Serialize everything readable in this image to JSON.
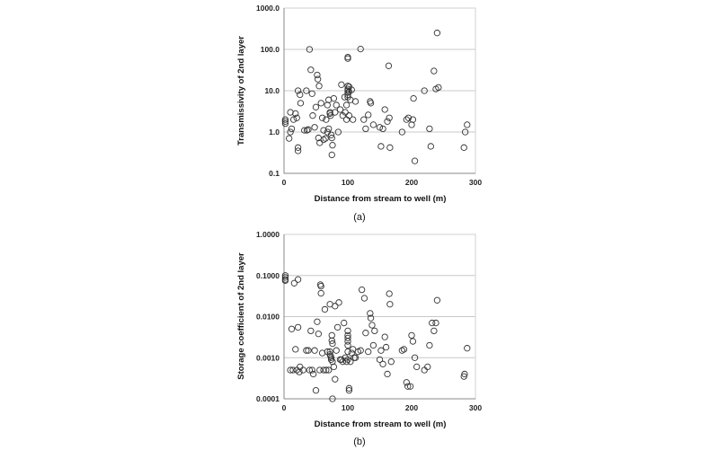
{
  "chart_data": [
    {
      "type": "scatter",
      "panel": "(a)",
      "xlabel": "Distance from stream to well (m)",
      "ylabel": "Transmissivity  of 2nd layer",
      "xlim": [
        0,
        300
      ],
      "ylim": [
        0.1,
        1000
      ],
      "y_scale": "log",
      "x_ticks": [
        "0",
        "100",
        "200",
        "300"
      ],
      "y_ticks": [
        "0.1",
        "1.0",
        "10.0",
        "100.0",
        "1000.0"
      ],
      "grid": "horizontal",
      "marker": "open-circle",
      "points": [
        [
          2,
          1.6
        ],
        [
          2,
          1.8
        ],
        [
          2,
          2.0
        ],
        [
          8,
          0.7
        ],
        [
          10,
          1.0
        ],
        [
          10,
          3.0
        ],
        [
          12,
          1.2
        ],
        [
          15,
          2.0
        ],
        [
          18,
          2.8
        ],
        [
          20,
          2.2
        ],
        [
          22,
          0.35
        ],
        [
          22,
          0.42
        ],
        [
          22,
          10.0
        ],
        [
          25,
          8.0
        ],
        [
          26,
          5.0
        ],
        [
          32,
          1.1
        ],
        [
          35,
          10.0
        ],
        [
          36,
          1.1
        ],
        [
          38,
          1.15
        ],
        [
          40,
          100.0
        ],
        [
          42,
          32.0
        ],
        [
          44,
          8.5
        ],
        [
          45,
          2.5
        ],
        [
          48,
          1.3
        ],
        [
          50,
          4.0
        ],
        [
          52,
          24.0
        ],
        [
          53,
          19.0
        ],
        [
          54,
          0.72
        ],
        [
          55,
          13.0
        ],
        [
          56,
          0.55
        ],
        [
          58,
          5.0
        ],
        [
          60,
          2.2
        ],
        [
          62,
          1.1
        ],
        [
          62,
          0.65
        ],
        [
          65,
          0.7
        ],
        [
          66,
          2.0
        ],
        [
          68,
          4.5
        ],
        [
          68,
          1.0
        ],
        [
          70,
          1.2
        ],
        [
          70,
          6.0
        ],
        [
          72,
          3.0
        ],
        [
          72,
          2.8
        ],
        [
          73,
          2.5
        ],
        [
          74,
          0.85
        ],
        [
          75,
          0.72
        ],
        [
          75,
          0.28
        ],
        [
          76,
          0.48
        ],
        [
          78,
          6.5
        ],
        [
          80,
          3.0
        ],
        [
          82,
          4.5
        ],
        [
          85,
          1.0
        ],
        [
          88,
          3.5
        ],
        [
          90,
          14.0
        ],
        [
          92,
          2.5
        ],
        [
          95,
          7.0
        ],
        [
          96,
          3.0
        ],
        [
          98,
          2.0
        ],
        [
          98,
          4.5
        ],
        [
          100,
          65.0
        ],
        [
          100,
          60.0
        ],
        [
          100,
          13.0
        ],
        [
          100,
          11.0
        ],
        [
          100,
          10.0
        ],
        [
          100,
          9.0
        ],
        [
          100,
          8.0
        ],
        [
          100,
          7.0
        ],
        [
          102,
          12.5
        ],
        [
          102,
          9.5
        ],
        [
          102,
          2.5
        ],
        [
          104,
          6.0
        ],
        [
          106,
          10.5
        ],
        [
          108,
          2.0
        ],
        [
          112,
          5.5
        ],
        [
          120,
          102.0
        ],
        [
          125,
          2.0
        ],
        [
          128,
          1.2
        ],
        [
          132,
          2.6
        ],
        [
          135,
          5.5
        ],
        [
          136,
          5.0
        ],
        [
          140,
          1.5
        ],
        [
          150,
          1.3
        ],
        [
          152,
          0.45
        ],
        [
          155,
          1.2
        ],
        [
          158,
          3.5
        ],
        [
          162,
          1.8
        ],
        [
          164,
          40.0
        ],
        [
          165,
          2.2
        ],
        [
          166,
          0.42
        ],
        [
          185,
          1.0
        ],
        [
          192,
          2.0
        ],
        [
          195,
          2.2
        ],
        [
          200,
          1.5
        ],
        [
          202,
          2.0
        ],
        [
          203,
          6.5
        ],
        [
          205,
          0.2
        ],
        [
          220,
          10.0
        ],
        [
          228,
          1.2
        ],
        [
          230,
          0.45
        ],
        [
          235,
          30.0
        ],
        [
          238,
          11.0
        ],
        [
          240,
          250.0
        ],
        [
          242,
          12.0
        ],
        [
          282,
          0.42
        ],
        [
          284,
          1.0
        ],
        [
          287,
          1.5
        ]
      ]
    },
    {
      "type": "scatter",
      "panel": "(b)",
      "xlabel": "Distance from stream to well (m)",
      "ylabel": "Storage coefficient of 2nd layer",
      "xlim": [
        0,
        300
      ],
      "ylim": [
        0.0001,
        1
      ],
      "y_scale": "log",
      "x_ticks": [
        "0",
        "100",
        "200",
        "300"
      ],
      "y_ticks": [
        "0.0001",
        "0.0010",
        "0.0100",
        "0.1000",
        "1.0000"
      ],
      "grid": "horizontal",
      "marker": "open-circle",
      "points": [
        [
          2,
          0.1
        ],
        [
          2,
          0.09
        ],
        [
          2,
          0.08
        ],
        [
          2,
          0.075
        ],
        [
          10,
          0.0005
        ],
        [
          12,
          0.005
        ],
        [
          14,
          0.0005
        ],
        [
          16,
          0.065
        ],
        [
          18,
          0.0016
        ],
        [
          20,
          0.0005
        ],
        [
          22,
          0.08
        ],
        [
          22,
          0.0055
        ],
        [
          24,
          0.00045
        ],
        [
          25,
          0.0006
        ],
        [
          30,
          0.0005
        ],
        [
          35,
          0.0015
        ],
        [
          38,
          0.0015
        ],
        [
          40,
          0.0005
        ],
        [
          42,
          0.0045
        ],
        [
          44,
          0.0005
        ],
        [
          46,
          0.0004
        ],
        [
          48,
          0.0015
        ],
        [
          50,
          0.00016
        ],
        [
          52,
          0.0075
        ],
        [
          54,
          0.0038
        ],
        [
          56,
          0.0005
        ],
        [
          57,
          0.06
        ],
        [
          58,
          0.055
        ],
        [
          58,
          0.037
        ],
        [
          60,
          0.0013
        ],
        [
          62,
          0.0005
        ],
        [
          64,
          0.015
        ],
        [
          66,
          0.0005
        ],
        [
          68,
          0.0014
        ],
        [
          70,
          0.0005
        ],
        [
          72,
          0.02
        ],
        [
          72,
          0.0014
        ],
        [
          72,
          0.0012
        ],
        [
          73,
          0.0011
        ],
        [
          74,
          0.001
        ],
        [
          74,
          0.0009
        ],
        [
          75,
          0.0035
        ],
        [
          75,
          0.0026
        ],
        [
          76,
          0.0022
        ],
        [
          76,
          0.0008
        ],
        [
          76,
          0.0001
        ],
        [
          78,
          0.0006
        ],
        [
          80,
          0.0003
        ],
        [
          80,
          0.018
        ],
        [
          82,
          0.0015
        ],
        [
          84,
          0.0055
        ],
        [
          86,
          0.022
        ],
        [
          88,
          0.0009
        ],
        [
          90,
          0.0009
        ],
        [
          92,
          0.0008
        ],
        [
          94,
          0.007
        ],
        [
          96,
          0.001
        ],
        [
          98,
          0.0008
        ],
        [
          100,
          0.0014
        ],
        [
          100,
          0.0045
        ],
        [
          100,
          0.0035
        ],
        [
          100,
          0.003
        ],
        [
          100,
          0.0025
        ],
        [
          100,
          0.002
        ],
        [
          100,
          0.0009
        ],
        [
          102,
          0.00018
        ],
        [
          102,
          0.00016
        ],
        [
          104,
          0.0008
        ],
        [
          106,
          0.0013
        ],
        [
          108,
          0.0016
        ],
        [
          110,
          0.001
        ],
        [
          112,
          0.001
        ],
        [
          116,
          0.0014
        ],
        [
          120,
          0.0015
        ],
        [
          122,
          0.045
        ],
        [
          126,
          0.028
        ],
        [
          128,
          0.004
        ],
        [
          132,
          0.0014
        ],
        [
          135,
          0.012
        ],
        [
          136,
          0.0092
        ],
        [
          138,
          0.0062
        ],
        [
          140,
          0.002
        ],
        [
          142,
          0.0045
        ],
        [
          150,
          0.0009
        ],
        [
          152,
          0.0015
        ],
        [
          155,
          0.0007
        ],
        [
          158,
          0.0032
        ],
        [
          160,
          0.0018
        ],
        [
          162,
          0.0004
        ],
        [
          165,
          0.036
        ],
        [
          166,
          0.02
        ],
        [
          168,
          0.0008
        ],
        [
          185,
          0.0015
        ],
        [
          188,
          0.0016
        ],
        [
          192,
          0.00025
        ],
        [
          194,
          0.0002
        ],
        [
          198,
          0.0002
        ],
        [
          200,
          0.0035
        ],
        [
          202,
          0.0025
        ],
        [
          205,
          0.001
        ],
        [
          208,
          0.0006
        ],
        [
          220,
          0.0005
        ],
        [
          225,
          0.0006
        ],
        [
          228,
          0.002
        ],
        [
          232,
          0.007
        ],
        [
          235,
          0.0045
        ],
        [
          238,
          0.007
        ],
        [
          240,
          0.025
        ],
        [
          282,
          0.00035
        ],
        [
          283,
          0.0004
        ],
        [
          287,
          0.0017
        ]
      ]
    }
  ]
}
